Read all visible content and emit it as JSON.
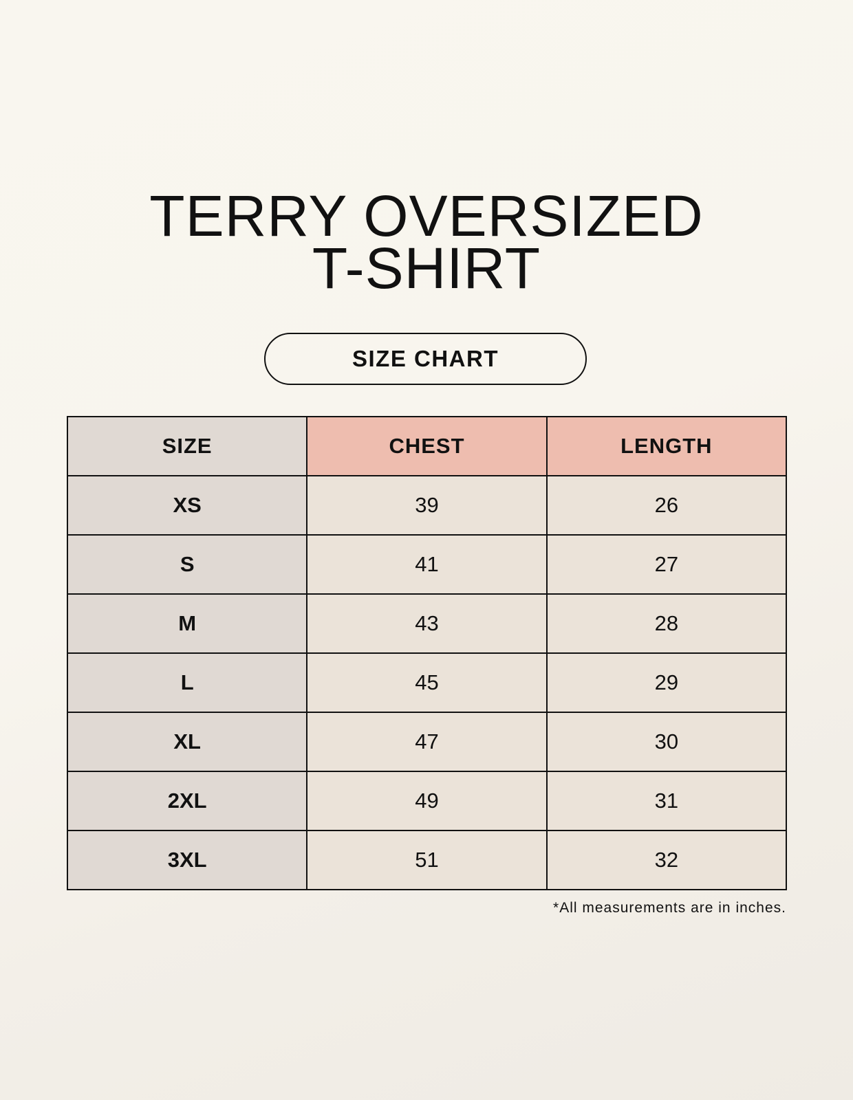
{
  "title": {
    "line1": "TERRY OVERSIZED",
    "line2": "T-SHIRT"
  },
  "badge": "SIZE CHART",
  "table": {
    "headers": [
      "SIZE",
      "CHEST",
      "LENGTH"
    ],
    "rows": [
      [
        "XS",
        "39",
        "26"
      ],
      [
        "S",
        "41",
        "27"
      ],
      [
        "M",
        "43",
        "28"
      ],
      [
        "L",
        "45",
        "29"
      ],
      [
        "XL",
        "47",
        "30"
      ],
      [
        "2XL",
        "49",
        "31"
      ],
      [
        "3XL",
        "51",
        "32"
      ]
    ]
  },
  "note": "*All measurements are in inches.",
  "colors": {
    "size_column": "#e0d9d3",
    "header_accent": "#eebdaf",
    "cell": "#ebe3d9"
  }
}
